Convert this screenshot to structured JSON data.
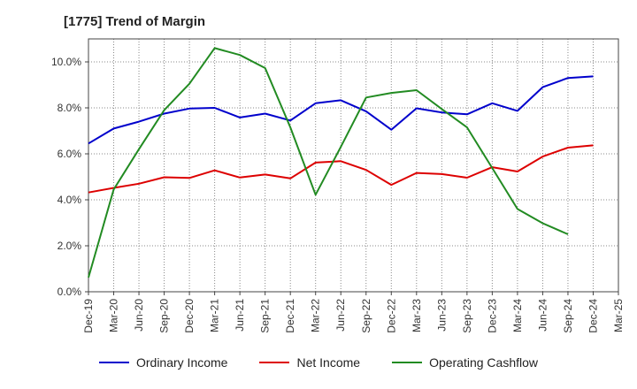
{
  "chart_data": {
    "type": "line",
    "title": "[1775]  Trend of Margin",
    "xlabel": "",
    "ylabel": "",
    "categories": [
      "Dec-19",
      "Mar-20",
      "Jun-20",
      "Sep-20",
      "Dec-20",
      "Mar-21",
      "Jun-21",
      "Sep-21",
      "Dec-21",
      "Mar-22",
      "Jun-22",
      "Sep-22",
      "Dec-22",
      "Mar-23",
      "Jun-23",
      "Sep-23",
      "Dec-23",
      "Mar-24",
      "Jun-24",
      "Sep-24",
      "Dec-24",
      "Mar-25"
    ],
    "ylim": [
      0,
      11
    ],
    "yticks": [
      0,
      2,
      4,
      6,
      8,
      10
    ],
    "ytick_labels": [
      "0.0%",
      "2.0%",
      "4.0%",
      "6.0%",
      "8.0%",
      "10.0%"
    ],
    "grid": true,
    "legend_position": "bottom",
    "series": [
      {
        "name": "Ordinary Income",
        "color": "#0000cc",
        "values": [
          6.45,
          7.1,
          7.4,
          7.75,
          7.97,
          8.0,
          7.58,
          7.75,
          7.45,
          8.2,
          8.33,
          7.85,
          7.05,
          7.98,
          7.8,
          7.72,
          8.2,
          7.87,
          8.9,
          9.3,
          9.37,
          null
        ]
      },
      {
        "name": "Net Income",
        "color": "#dd0000",
        "values": [
          4.32,
          4.52,
          4.7,
          4.98,
          4.95,
          5.28,
          4.97,
          5.1,
          4.93,
          5.62,
          5.68,
          5.3,
          4.65,
          5.17,
          5.12,
          4.96,
          5.42,
          5.23,
          5.88,
          6.27,
          6.37,
          null
        ]
      },
      {
        "name": "Operating Cashflow",
        "color": "#228b22",
        "values": [
          0.62,
          4.45,
          6.2,
          7.9,
          9.05,
          10.6,
          10.3,
          9.73,
          7.15,
          4.22,
          6.3,
          8.45,
          8.65,
          8.77,
          7.95,
          7.15,
          5.38,
          3.6,
          2.98,
          2.5,
          null,
          null
        ]
      }
    ]
  }
}
